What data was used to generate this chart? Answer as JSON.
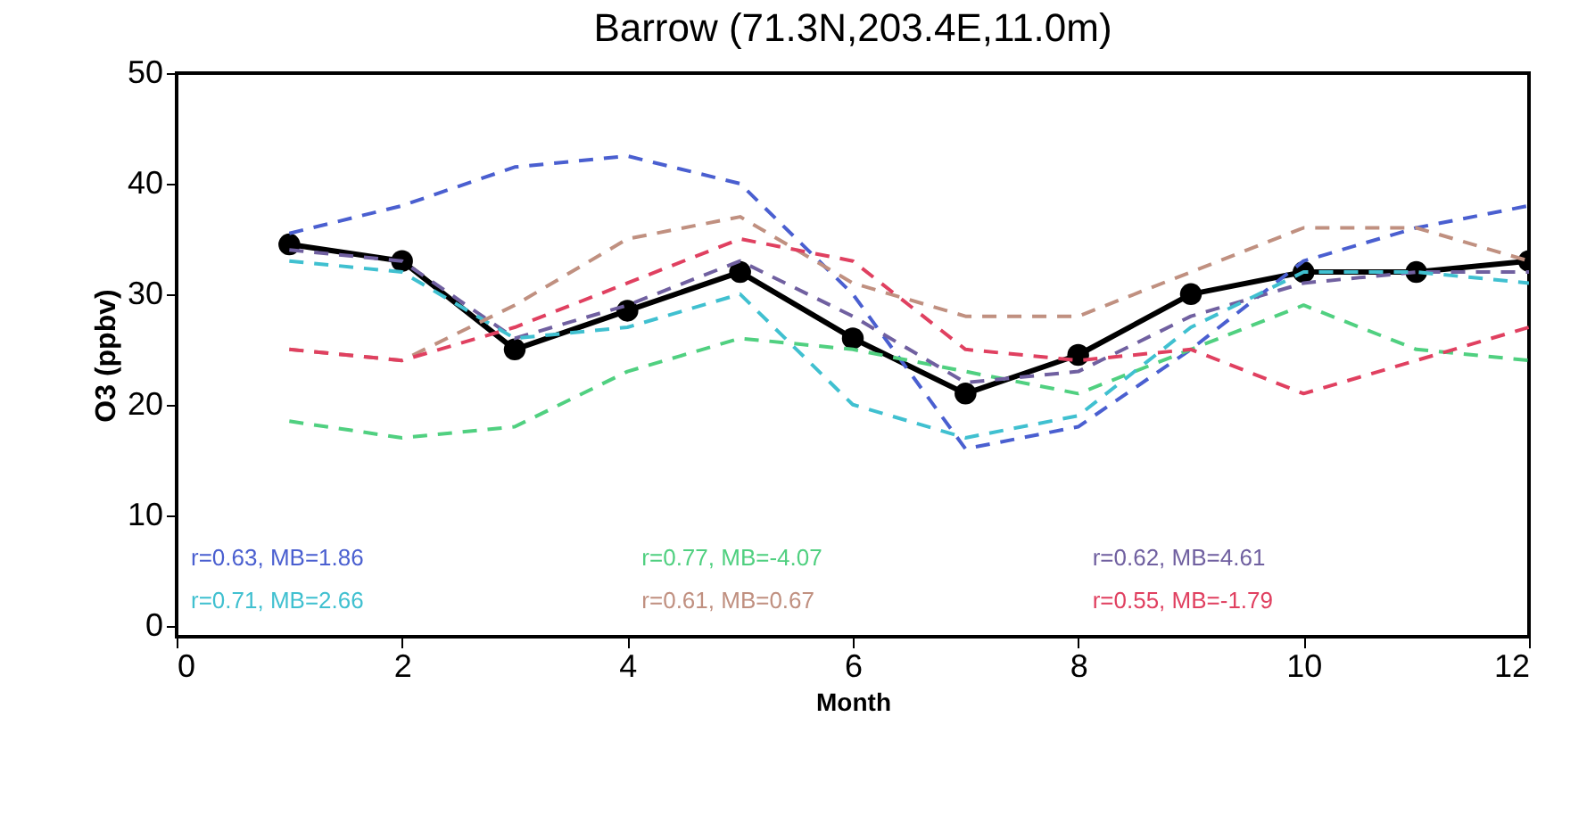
{
  "chart_data": {
    "type": "line",
    "title": "Barrow (71.3N,203.4E,11.0m)",
    "xlabel": "Month",
    "ylabel": "O3 (ppbv)",
    "x": [
      1,
      2,
      3,
      4,
      5,
      6,
      7,
      8,
      9,
      10,
      11,
      12
    ],
    "xlim": [
      0,
      12
    ],
    "xticks": [
      0,
      2,
      4,
      6,
      8,
      10,
      12
    ],
    "ylim": [
      -1,
      50
    ],
    "yticks": [
      0,
      10,
      20,
      30,
      40,
      50
    ],
    "legend": "bottom",
    "series": [
      {
        "color": "#000000",
        "values": [
          34.5,
          33,
          25,
          28.5,
          32,
          26,
          21,
          24.5,
          30,
          32,
          32,
          33
        ],
        "marker": "circle",
        "line_style": "solid"
      },
      {
        "name": "r=0.63, MB=1.86",
        "color": "#4a5fd0",
        "values": [
          35.5,
          38,
          41.5,
          42.5,
          40,
          30,
          16,
          18,
          25,
          33,
          36,
          38
        ],
        "marker": "none",
        "line_style": "dashed"
      },
      {
        "name": "r=0.77, MB=-4.07",
        "color": "#50d080",
        "values": [
          18.5,
          17,
          18,
          23,
          26,
          25,
          23,
          21,
          25,
          29,
          25,
          24
        ],
        "marker": "none",
        "line_style": "dashed"
      },
      {
        "name": "r=0.62, MB=4.61",
        "color": "#7060a0",
        "values": [
          34,
          33,
          26,
          29,
          33,
          28,
          22,
          23,
          28,
          31,
          32,
          32
        ],
        "marker": "none",
        "line_style": "dashed"
      },
      {
        "name": "r=0.71, MB=2.66",
        "color": "#40c0d0",
        "values": [
          33,
          32,
          26,
          27,
          30,
          20,
          17,
          19,
          27,
          32,
          32,
          31
        ],
        "marker": "none",
        "line_style": "dashed"
      },
      {
        "name": "r=0.61, MB=0.67",
        "color": "#c09080",
        "values": [
          25,
          24,
          29,
          35,
          37,
          31,
          28,
          28,
          32,
          36,
          36,
          33
        ],
        "marker": "none",
        "line_style": "dashed"
      },
      {
        "name": "r=0.55, MB=-1.79",
        "color": "#e04060",
        "values": [
          25,
          24,
          27,
          31,
          35,
          33,
          25,
          24,
          25,
          21,
          24,
          27
        ],
        "marker": "none",
        "line_style": "dashed"
      }
    ]
  }
}
